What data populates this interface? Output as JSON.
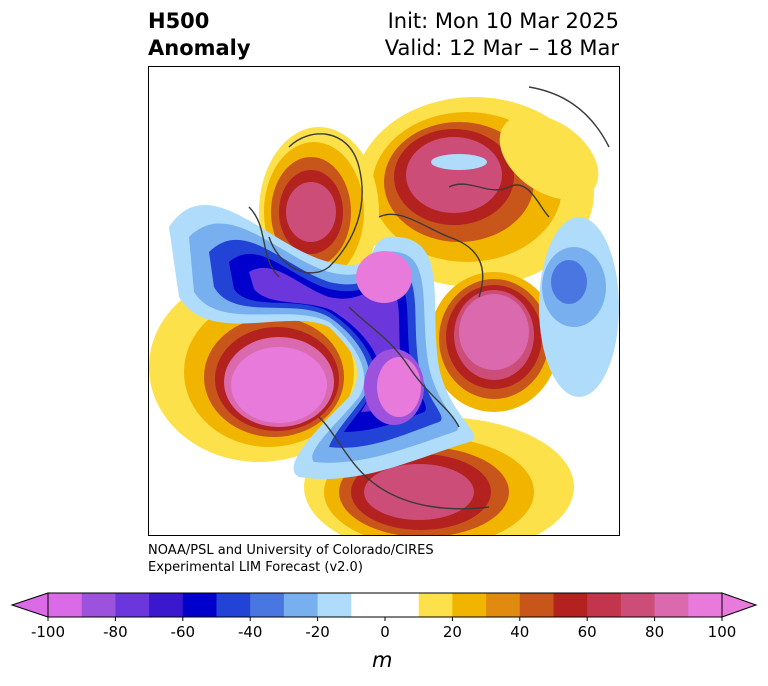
{
  "title": {
    "line1": "H500",
    "line2": "Anomaly"
  },
  "init": {
    "line1": "Init: Mon 10 Mar 2025",
    "line2": "Valid: 12 Mar – 18 Mar"
  },
  "credit": {
    "line1": "NOAA/PSL and University of Colorado/CIRES",
    "line2": "Experimental LIM Forecast (v2.0)"
  },
  "colorbar": {
    "unit": "m",
    "ticks": [
      "-100",
      "-80",
      "-60",
      "-40",
      "-20",
      "0",
      "20",
      "40",
      "60",
      "80",
      "100"
    ],
    "colors": [
      "#db6ae6",
      "#9c52dd",
      "#6b37dd",
      "#3a18cd",
      "#0000cc",
      "#2343d6",
      "#4a76e2",
      "#78b0ef",
      "#aedcfa",
      "#ffffff",
      "#ffffff",
      "#fde14a",
      "#f1b500",
      "#e08b10",
      "#c8561a",
      "#b3221f",
      "#c3354c",
      "#cd4d79",
      "#da6aad",
      "#e87adb"
    ]
  }
}
